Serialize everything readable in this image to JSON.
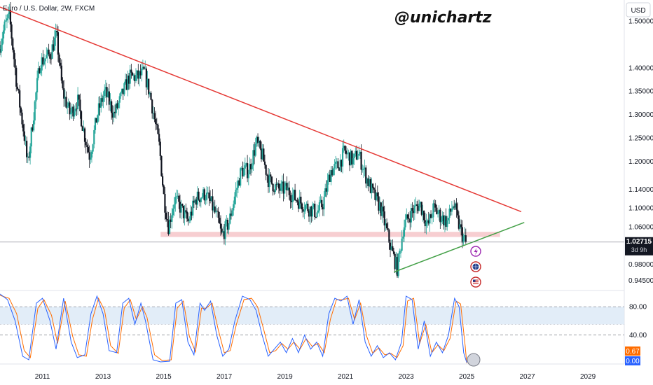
{
  "header": {
    "symbol_title": "Euro / U.S. Dollar, 2W, FXCM",
    "watermark": "@unichartz",
    "currency_button": "USD"
  },
  "colors": {
    "up": "#26a69a",
    "down": "#131722",
    "resistance": "#e53935",
    "support": "#43a047",
    "zone": "#f6c6c9",
    "stoch_k": "#2962ff",
    "stoch_d": "#ff6d00",
    "stoch_band": "#dbe9f6",
    "price_badge": "#131722",
    "k_badge": "#ff6d00",
    "d_badge": "#2962ff"
  },
  "price_badge": {
    "value": "1.02715",
    "countdown": "3d 9h"
  },
  "stoch_badges": {
    "k": "0.67",
    "d": "0.00"
  },
  "event_icons": [
    "lightning-icon",
    "globe-icon",
    "us-flag-icon"
  ],
  "chart_data": {
    "type": "candlestick",
    "title": "Euro / U.S. Dollar, 2W, FXCM",
    "price_axis": {
      "ticks": [
        "1.50000",
        "1.40000",
        "1.35000",
        "1.30000",
        "1.25000",
        "1.20000",
        "1.14000",
        "1.10000",
        "1.06000",
        "0.98000",
        "0.94500"
      ],
      "tick_values": [
        1.5,
        1.4,
        1.35,
        1.3,
        1.25,
        1.2,
        1.14,
        1.1,
        1.06,
        0.98,
        0.945
      ],
      "range": [
        0.925,
        1.545
      ]
    },
    "time_axis": {
      "labels": [
        "2011",
        "2013",
        "2015",
        "2017",
        "2019",
        "2021",
        "2023",
        "2025",
        "2027",
        "2029"
      ],
      "years": [
        2011,
        2013,
        2015,
        2017,
        2019,
        2021,
        2023,
        2025,
        2027,
        2029
      ],
      "range": [
        2009.6,
        2030.2
      ]
    },
    "last_price": 1.02715,
    "price_path": [
      [
        2009.6,
        1.44
      ],
      [
        2009.8,
        1.49
      ],
      [
        2009.95,
        1.51
      ],
      [
        2010.2,
        1.36
      ],
      [
        2010.45,
        1.25
      ],
      [
        2010.55,
        1.19
      ],
      [
        2010.8,
        1.33
      ],
      [
        2010.95,
        1.41
      ],
      [
        2011.3,
        1.43
      ],
      [
        2011.5,
        1.47
      ],
      [
        2011.7,
        1.35
      ],
      [
        2011.95,
        1.3
      ],
      [
        2012.2,
        1.33
      ],
      [
        2012.45,
        1.25
      ],
      [
        2012.6,
        1.21
      ],
      [
        2012.85,
        1.3
      ],
      [
        2013.1,
        1.35
      ],
      [
        2013.4,
        1.3
      ],
      [
        2013.6,
        1.33
      ],
      [
        2013.9,
        1.38
      ],
      [
        2014.2,
        1.38
      ],
      [
        2014.4,
        1.39
      ],
      [
        2014.6,
        1.34
      ],
      [
        2014.9,
        1.23
      ],
      [
        2015.05,
        1.12
      ],
      [
        2015.2,
        1.06
      ],
      [
        2015.4,
        1.12
      ],
      [
        2015.6,
        1.1
      ],
      [
        2015.85,
        1.07
      ],
      [
        2016.1,
        1.12
      ],
      [
        2016.4,
        1.13
      ],
      [
        2016.6,
        1.11
      ],
      [
        2016.85,
        1.07
      ],
      [
        2016.95,
        1.04
      ],
      [
        2017.2,
        1.07
      ],
      [
        2017.4,
        1.13
      ],
      [
        2017.6,
        1.18
      ],
      [
        2017.85,
        1.18
      ],
      [
        2018.1,
        1.24
      ],
      [
        2018.3,
        1.21
      ],
      [
        2018.5,
        1.16
      ],
      [
        2018.8,
        1.14
      ],
      [
        2019.1,
        1.14
      ],
      [
        2019.4,
        1.12
      ],
      [
        2019.6,
        1.11
      ],
      [
        2019.8,
        1.1
      ],
      [
        2020.1,
        1.09
      ],
      [
        2020.3,
        1.11
      ],
      [
        2020.55,
        1.18
      ],
      [
        2020.8,
        1.19
      ],
      [
        2021.0,
        1.22
      ],
      [
        2021.3,
        1.2
      ],
      [
        2021.45,
        1.22
      ],
      [
        2021.7,
        1.17
      ],
      [
        2021.95,
        1.13
      ],
      [
        2022.2,
        1.1
      ],
      [
        2022.4,
        1.05
      ],
      [
        2022.6,
        1.0
      ],
      [
        2022.75,
        0.97
      ],
      [
        2022.95,
        1.06
      ],
      [
        2023.2,
        1.09
      ],
      [
        2023.5,
        1.11
      ],
      [
        2023.75,
        1.06
      ],
      [
        2023.95,
        1.1
      ],
      [
        2024.2,
        1.08
      ],
      [
        2024.4,
        1.07
      ],
      [
        2024.6,
        1.11
      ],
      [
        2024.75,
        1.07
      ],
      [
        2024.9,
        1.04
      ],
      [
        2025.0,
        1.027
      ]
    ],
    "resistance_line": {
      "from": [
        2009.6,
        1.53
      ],
      "to": [
        2026.8,
        1.092
      ]
    },
    "support_line": {
      "from": [
        2022.6,
        0.963
      ],
      "to": [
        2026.9,
        1.069
      ]
    },
    "support_zone": {
      "x": [
        2014.9,
        2026.1
      ],
      "y": [
        1.038,
        1.049
      ]
    },
    "indicator": {
      "name": "Stochastic",
      "levels": [
        80.0,
        40.0
      ],
      "level_labels": [
        "80.00",
        "40.00"
      ],
      "range": [
        0,
        100
      ],
      "k_last": 0.67,
      "d_last": 0.0,
      "k_path": [
        [
          2009.6,
          98
        ],
        [
          2009.85,
          90
        ],
        [
          2010.1,
          60
        ],
        [
          2010.35,
          10
        ],
        [
          2010.55,
          5
        ],
        [
          2010.8,
          85
        ],
        [
          2011.0,
          92
        ],
        [
          2011.25,
          60
        ],
        [
          2011.45,
          20
        ],
        [
          2011.7,
          92
        ],
        [
          2011.95,
          30
        ],
        [
          2012.15,
          8
        ],
        [
          2012.4,
          12
        ],
        [
          2012.6,
          70
        ],
        [
          2012.8,
          95
        ],
        [
          2013.0,
          70
        ],
        [
          2013.2,
          18
        ],
        [
          2013.45,
          15
        ],
        [
          2013.65,
          85
        ],
        [
          2013.85,
          92
        ],
        [
          2014.05,
          55
        ],
        [
          2014.25,
          85
        ],
        [
          2014.4,
          60
        ],
        [
          2014.65,
          5
        ],
        [
          2014.9,
          2
        ],
        [
          2015.2,
          3
        ],
        [
          2015.4,
          85
        ],
        [
          2015.6,
          90
        ],
        [
          2015.8,
          30
        ],
        [
          2016.0,
          12
        ],
        [
          2016.2,
          85
        ],
        [
          2016.35,
          75
        ],
        [
          2016.55,
          88
        ],
        [
          2016.75,
          40
        ],
        [
          2016.95,
          10
        ],
        [
          2017.15,
          20
        ],
        [
          2017.35,
          60
        ],
        [
          2017.6,
          95
        ],
        [
          2017.85,
          90
        ],
        [
          2018.05,
          75
        ],
        [
          2018.25,
          40
        ],
        [
          2018.45,
          10
        ],
        [
          2018.65,
          20
        ],
        [
          2018.85,
          30
        ],
        [
          2019.05,
          15
        ],
        [
          2019.25,
          35
        ],
        [
          2019.45,
          15
        ],
        [
          2019.65,
          40
        ],
        [
          2019.85,
          20
        ],
        [
          2020.05,
          30
        ],
        [
          2020.25,
          10
        ],
        [
          2020.45,
          70
        ],
        [
          2020.65,
          92
        ],
        [
          2020.85,
          88
        ],
        [
          2021.05,
          95
        ],
        [
          2021.25,
          55
        ],
        [
          2021.45,
          90
        ],
        [
          2021.65,
          30
        ],
        [
          2021.85,
          10
        ],
        [
          2022.05,
          25
        ],
        [
          2022.25,
          8
        ],
        [
          2022.45,
          15
        ],
        [
          2022.65,
          5
        ],
        [
          2022.85,
          30
        ],
        [
          2023.0,
          95
        ],
        [
          2023.2,
          90
        ],
        [
          2023.4,
          20
        ],
        [
          2023.6,
          60
        ],
        [
          2023.8,
          10
        ],
        [
          2024.0,
          30
        ],
        [
          2024.2,
          15
        ],
        [
          2024.4,
          40
        ],
        [
          2024.6,
          92
        ],
        [
          2024.75,
          80
        ],
        [
          2024.9,
          15
        ],
        [
          2025.0,
          1
        ]
      ],
      "d_path": [
        [
          2009.6,
          96
        ],
        [
          2009.9,
          92
        ],
        [
          2010.15,
          70
        ],
        [
          2010.4,
          18
        ],
        [
          2010.6,
          8
        ],
        [
          2010.85,
          78
        ],
        [
          2011.05,
          90
        ],
        [
          2011.3,
          68
        ],
        [
          2011.5,
          28
        ],
        [
          2011.75,
          88
        ],
        [
          2012.0,
          38
        ],
        [
          2012.2,
          12
        ],
        [
          2012.45,
          10
        ],
        [
          2012.65,
          62
        ],
        [
          2012.85,
          92
        ],
        [
          2013.05,
          75
        ],
        [
          2013.25,
          25
        ],
        [
          2013.5,
          14
        ],
        [
          2013.7,
          78
        ],
        [
          2013.9,
          90
        ],
        [
          2014.1,
          62
        ],
        [
          2014.3,
          80
        ],
        [
          2014.45,
          65
        ],
        [
          2014.7,
          12
        ],
        [
          2014.95,
          4
        ],
        [
          2015.25,
          5
        ],
        [
          2015.45,
          78
        ],
        [
          2015.65,
          88
        ],
        [
          2015.85,
          38
        ],
        [
          2016.05,
          16
        ],
        [
          2016.25,
          78
        ],
        [
          2016.4,
          78
        ],
        [
          2016.6,
          85
        ],
        [
          2016.8,
          48
        ],
        [
          2017.0,
          15
        ],
        [
          2017.2,
          18
        ],
        [
          2017.4,
          55
        ],
        [
          2017.65,
          90
        ],
        [
          2017.9,
          92
        ],
        [
          2018.1,
          80
        ],
        [
          2018.3,
          48
        ],
        [
          2018.5,
          15
        ],
        [
          2018.7,
          18
        ],
        [
          2018.9,
          28
        ],
        [
          2019.1,
          20
        ],
        [
          2019.3,
          30
        ],
        [
          2019.5,
          20
        ],
        [
          2019.7,
          35
        ],
        [
          2019.9,
          24
        ],
        [
          2020.1,
          28
        ],
        [
          2020.3,
          15
        ],
        [
          2020.5,
          62
        ],
        [
          2020.7,
          90
        ],
        [
          2020.9,
          90
        ],
        [
          2021.1,
          92
        ],
        [
          2021.3,
          62
        ],
        [
          2021.5,
          85
        ],
        [
          2021.7,
          38
        ],
        [
          2021.9,
          14
        ],
        [
          2022.1,
          22
        ],
        [
          2022.3,
          12
        ],
        [
          2022.5,
          14
        ],
        [
          2022.7,
          8
        ],
        [
          2022.9,
          25
        ],
        [
          2023.05,
          88
        ],
        [
          2023.25,
          92
        ],
        [
          2023.45,
          28
        ],
        [
          2023.65,
          55
        ],
        [
          2023.85,
          15
        ],
        [
          2024.05,
          26
        ],
        [
          2024.25,
          18
        ],
        [
          2024.45,
          35
        ],
        [
          2024.65,
          88
        ],
        [
          2024.8,
          84
        ],
        [
          2024.95,
          25
        ],
        [
          2025.0,
          0
        ]
      ]
    }
  }
}
